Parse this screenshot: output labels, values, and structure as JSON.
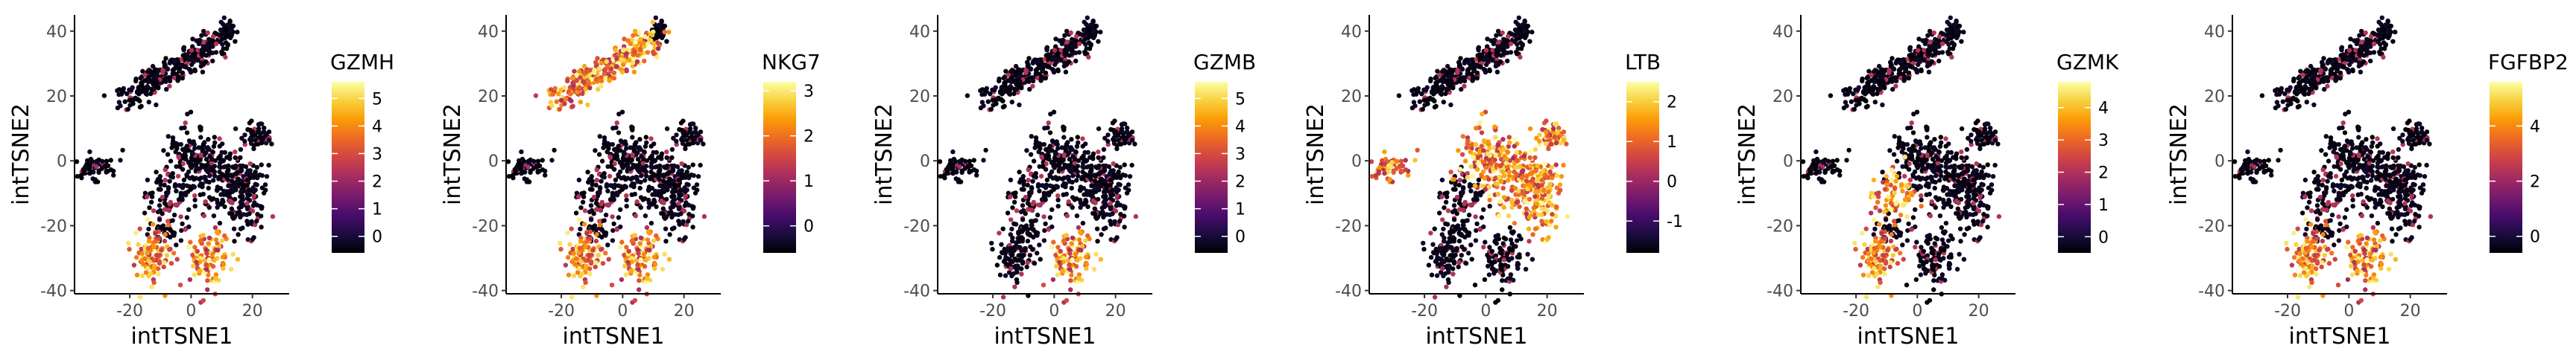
{
  "chart_data": [
    {
      "type": "scatter",
      "gene": "GZMH",
      "xlabel": "intTSNE1",
      "ylabel": "intTSNE2",
      "xlim": [
        -38,
        32
      ],
      "ylim": [
        -41,
        45
      ],
      "x_ticks": [
        -20,
        0,
        20
      ],
      "y_ticks": [
        -40,
        -20,
        0,
        20,
        40
      ],
      "legend_title": "GZMH",
      "legend_ticks": [
        0,
        1,
        2,
        3,
        4,
        5
      ],
      "scale_min": -0.6,
      "scale_max": 5.6,
      "hot_clusters": [
        "bottom-left",
        "bottom-right"
      ]
    },
    {
      "type": "scatter",
      "gene": "NKG7",
      "xlabel": "intTSNE1",
      "ylabel": "intTSNE2",
      "xlim": [
        -38,
        32
      ],
      "ylim": [
        -41,
        45
      ],
      "x_ticks": [
        -20,
        0,
        20
      ],
      "y_ticks": [
        -40,
        -20,
        0,
        20,
        40
      ],
      "legend_title": "NKG7",
      "legend_ticks": [
        0,
        1,
        2,
        3
      ],
      "scale_min": -0.6,
      "scale_max": 3.2,
      "hot_clusters": [
        "bottom-left",
        "bottom-right",
        "top-diagonal"
      ]
    },
    {
      "type": "scatter",
      "gene": "GZMB",
      "xlabel": "intTSNE1",
      "ylabel": "intTSNE2",
      "xlim": [
        -38,
        32
      ],
      "ylim": [
        -41,
        45
      ],
      "x_ticks": [
        -20,
        0,
        20
      ],
      "y_ticks": [
        -40,
        -20,
        0,
        20,
        40
      ],
      "legend_title": "GZMB",
      "legend_ticks": [
        0,
        1,
        2,
        3,
        4,
        5
      ],
      "scale_min": -0.6,
      "scale_max": 5.6,
      "hot_clusters": [
        "bottom-right"
      ]
    },
    {
      "type": "scatter",
      "gene": "LTB",
      "xlabel": "intTSNE1",
      "ylabel": "intTSNE2",
      "xlim": [
        -38,
        32
      ],
      "ylim": [
        -41,
        45
      ],
      "x_ticks": [
        -20,
        0,
        20
      ],
      "y_ticks": [
        -40,
        -20,
        0,
        20,
        40
      ],
      "legend_title": "LTB",
      "legend_ticks": [
        -1,
        0,
        1,
        2
      ],
      "scale_min": -1.8,
      "scale_max": 2.5,
      "hot_clusters": [
        "left-small",
        "center",
        "right-big",
        "right-small"
      ]
    },
    {
      "type": "scatter",
      "gene": "GZMK",
      "xlabel": "intTSNE1",
      "ylabel": "intTSNE2",
      "xlim": [
        -38,
        32
      ],
      "ylim": [
        -41,
        45
      ],
      "x_ticks": [
        -20,
        0,
        20
      ],
      "y_ticks": [
        -40,
        -20,
        0,
        20,
        40
      ],
      "legend_title": "GZMK",
      "legend_ticks": [
        0,
        1,
        2,
        3,
        4
      ],
      "scale_min": -0.5,
      "scale_max": 4.8,
      "hot_clusters": [
        "bottom-left",
        "mid-left"
      ]
    },
    {
      "type": "scatter",
      "gene": "FGFBP2",
      "xlabel": "intTSNE1",
      "ylabel": "intTSNE2",
      "xlim": [
        -38,
        32
      ],
      "ylim": [
        -41,
        45
      ],
      "x_ticks": [
        -20,
        0,
        20
      ],
      "y_ticks": [
        -40,
        -20,
        0,
        20,
        40
      ],
      "legend_title": "FGFBP2",
      "legend_ticks": [
        0,
        2,
        4
      ],
      "scale_min": -0.6,
      "scale_max": 5.6,
      "hot_clusters": [
        "bottom-left",
        "bottom-right"
      ]
    }
  ],
  "colors": {
    "inferno_stops": [
      "#000004",
      "#1b0c41",
      "#4a0c6b",
      "#781c6d",
      "#a52c60",
      "#cf4446",
      "#ed6925",
      "#fb9b06",
      "#f7d13d",
      "#fcffa4"
    ],
    "axis_line": "#000000",
    "tick_text": "#4d4d4d"
  }
}
